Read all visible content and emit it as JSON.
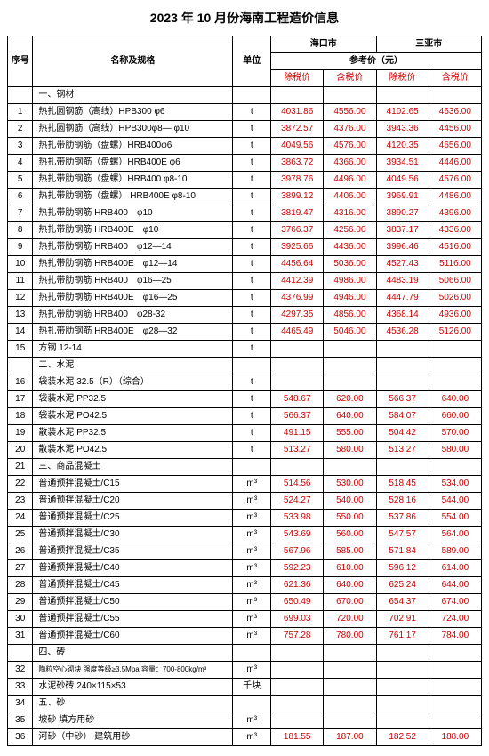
{
  "title": "2023 年 10 月份海南工程造价信息",
  "headers": {
    "seq": "序号",
    "name": "名称及规格",
    "unit": "单位",
    "city1": "海口市",
    "city2": "三亚市",
    "ref": "参考价（元）",
    "excl": "除税价",
    "incl": "含税价"
  },
  "rows": [
    {
      "seq": "",
      "name": "一、钢材",
      "unit": "",
      "cat": true
    },
    {
      "seq": "1",
      "name": "热扎圆钢筋（高线）HPB300 φ6",
      "unit": "t",
      "p": [
        "4031.86",
        "4556.00",
        "4102.65",
        "4636.00"
      ]
    },
    {
      "seq": "2",
      "name": "热扎圆钢筋（高线）HPB300φ8— φ10",
      "unit": "t",
      "p": [
        "3872.57",
        "4376.00",
        "3943.36",
        "4456.00"
      ]
    },
    {
      "seq": "3",
      "name": "热扎带肋钢筋（盘螺）HRB400φ6",
      "unit": "t",
      "p": [
        "4049.56",
        "4576.00",
        "4120.35",
        "4656.00"
      ]
    },
    {
      "seq": "4",
      "name": "热扎带肋钢筋（盘螺）HRB400E φ6",
      "unit": "t",
      "p": [
        "3863.72",
        "4366.00",
        "3934.51",
        "4446.00"
      ]
    },
    {
      "seq": "5",
      "name": "热扎带肋钢筋（盘螺）HRB400 φ8-10",
      "unit": "t",
      "p": [
        "3978.76",
        "4496.00",
        "4049.56",
        "4576.00"
      ]
    },
    {
      "seq": "6",
      "name": "热扎带肋钢筋（盘螺） HRB400E φ8-10",
      "unit": "t",
      "p": [
        "3899.12",
        "4406.00",
        "3969.91",
        "4486.00"
      ]
    },
    {
      "seq": "7",
      "name": "热扎带肋钢筋  HRB400　φ10",
      "unit": "t",
      "p": [
        "3819.47",
        "4316.00",
        "3890.27",
        "4396.00"
      ]
    },
    {
      "seq": "8",
      "name": "热扎带肋钢筋  HRB400E　φ10",
      "unit": "t",
      "p": [
        "3766.37",
        "4256.00",
        "3837.17",
        "4336.00"
      ]
    },
    {
      "seq": "9",
      "name": "热扎带肋钢筋  HRB400　φ12—14",
      "unit": "t",
      "p": [
        "3925.66",
        "4436.00",
        "3996.46",
        "4516.00"
      ]
    },
    {
      "seq": "10",
      "name": "热扎带肋钢筋  HRB400E　φ12—14",
      "unit": "t",
      "p": [
        "4456.64",
        "5036.00",
        "4527.43",
        "5116.00"
      ]
    },
    {
      "seq": "11",
      "name": "热扎带肋钢筋  HRB400　φ16—25",
      "unit": "t",
      "p": [
        "4412.39",
        "4986.00",
        "4483.19",
        "5066.00"
      ]
    },
    {
      "seq": "12",
      "name": "热扎带肋钢筋  HRB400E　φ16—25",
      "unit": "t",
      "p": [
        "4376.99",
        "4946.00",
        "4447.79",
        "5026.00"
      ]
    },
    {
      "seq": "13",
      "name": "热扎带肋钢筋  HRB400　φ28-32",
      "unit": "t",
      "p": [
        "4297.35",
        "4856.00",
        "4368.14",
        "4936.00"
      ]
    },
    {
      "seq": "14",
      "name": "热扎带肋钢筋  HRB400E　φ28—32",
      "unit": "t",
      "p": [
        "4465.49",
        "5046.00",
        "4536.28",
        "5126.00"
      ]
    },
    {
      "seq": "15",
      "name": "方钢   12-14",
      "unit": "t",
      "p": [
        "",
        "",
        "",
        ""
      ]
    },
    {
      "seq": "",
      "name": "二、水泥",
      "unit": "",
      "cat": true
    },
    {
      "seq": "16",
      "name": "袋装水泥 32.5（R）（综合）",
      "unit": "t",
      "p": [
        "",
        "",
        "",
        ""
      ]
    },
    {
      "seq": "17",
      "name": "袋装水泥 PP32.5",
      "unit": "t",
      "p": [
        "548.67",
        "620.00",
        "566.37",
        "640.00"
      ]
    },
    {
      "seq": "18",
      "name": "袋装水泥 PO42.5",
      "unit": "t",
      "p": [
        "566.37",
        "640.00",
        "584.07",
        "660.00"
      ]
    },
    {
      "seq": "19",
      "name": "散装水泥 PP32.5",
      "unit": "t",
      "p": [
        "491.15",
        "555.00",
        "504.42",
        "570.00"
      ]
    },
    {
      "seq": "20",
      "name": "散装水泥 PO42.5",
      "unit": "t",
      "p": [
        "513.27",
        "580.00",
        "513.27",
        "580.00"
      ]
    },
    {
      "seq": "21",
      "name": "三、商品混凝土",
      "unit": "",
      "cat": true
    },
    {
      "seq": "22",
      "name": "普通预拌混凝土/C15",
      "unit": "m³",
      "p": [
        "514.56",
        "530.00",
        "518.45",
        "534.00"
      ]
    },
    {
      "seq": "23",
      "name": "普通预拌混凝土/C20",
      "unit": "m³",
      "p": [
        "524.27",
        "540.00",
        "528.16",
        "544.00"
      ]
    },
    {
      "seq": "24",
      "name": "普通预拌混凝土/C25",
      "unit": "m³",
      "p": [
        "533.98",
        "550.00",
        "537.86",
        "554.00"
      ]
    },
    {
      "seq": "25",
      "name": "普通预拌混凝土/C30",
      "unit": "m³",
      "p": [
        "543.69",
        "560.00",
        "547.57",
        "564.00"
      ]
    },
    {
      "seq": "26",
      "name": "普通预拌混凝土/C35",
      "unit": "m³",
      "p": [
        "567.96",
        "585.00",
        "571.84",
        "589.00"
      ]
    },
    {
      "seq": "27",
      "name": "普通预拌混凝土/C40",
      "unit": "m³",
      "p": [
        "592.23",
        "610.00",
        "596.12",
        "614.00"
      ]
    },
    {
      "seq": "28",
      "name": "普通预拌混凝土/C45",
      "unit": "m³",
      "p": [
        "621.36",
        "640.00",
        "625.24",
        "644.00"
      ]
    },
    {
      "seq": "29",
      "name": "普通预拌混凝土/C50",
      "unit": "m³",
      "p": [
        "650.49",
        "670.00",
        "654.37",
        "674.00"
      ]
    },
    {
      "seq": "30",
      "name": "普通预拌混凝土/C55",
      "unit": "m³",
      "p": [
        "699.03",
        "720.00",
        "702.91",
        "724.00"
      ]
    },
    {
      "seq": "31",
      "name": "普通预拌混凝土/C60",
      "unit": "m³",
      "p": [
        "757.28",
        "780.00",
        "761.17",
        "784.00"
      ]
    },
    {
      "seq": "",
      "name": "四、砖",
      "unit": "",
      "cat": true
    },
    {
      "seq": "32",
      "name": "陶粒空心砌块 强度等级≥3.5Mpa 容量：700-800kg/m³",
      "unit": "m³",
      "p": [
        "",
        "",
        "",
        ""
      ],
      "small": true
    },
    {
      "seq": "33",
      "name": "水泥砂砖 240×115×53",
      "unit": "千块",
      "p": [
        "",
        "",
        "",
        ""
      ]
    },
    {
      "seq": "34",
      "name": "五、砂",
      "unit": "",
      "cat": true
    },
    {
      "seq": "35",
      "name": "坡砂  填方用砂",
      "unit": "m³",
      "p": [
        "",
        "",
        "",
        ""
      ]
    },
    {
      "seq": "36",
      "name": "河砂（中砂） 建筑用砂",
      "unit": "m³",
      "p": [
        "181.55",
        "187.00",
        "182.52",
        "188.00"
      ]
    }
  ]
}
